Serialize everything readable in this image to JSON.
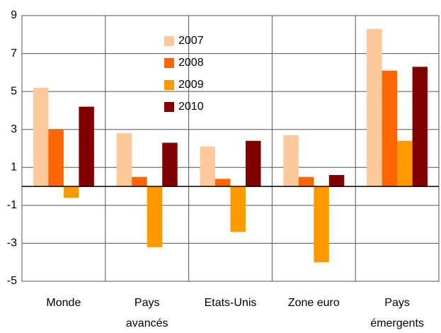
{
  "chart_data": {
    "type": "bar",
    "categories": [
      "Monde",
      "Pays avancés",
      "Etats-Unis",
      "Zone euro",
      "Pays émergents"
    ],
    "series": [
      {
        "name": "2007",
        "color": "#fdc99a",
        "values": [
          5.2,
          2.8,
          2.1,
          2.7,
          8.3
        ]
      },
      {
        "name": "2008",
        "color": "#ff6600",
        "values": [
          3.0,
          0.5,
          0.4,
          0.5,
          6.1
        ]
      },
      {
        "name": "2009",
        "color": "#ff9900",
        "values": [
          -0.6,
          -3.2,
          -2.4,
          -4.0,
          2.4
        ]
      },
      {
        "name": "2010",
        "color": "#800000",
        "values": [
          4.2,
          2.3,
          2.4,
          0.6,
          6.3
        ]
      }
    ],
    "ylim": [
      -5,
      9
    ],
    "yticks": [
      -5,
      -3,
      -1,
      1,
      3,
      5,
      7,
      9
    ],
    "grid": true,
    "legend": "top"
  }
}
